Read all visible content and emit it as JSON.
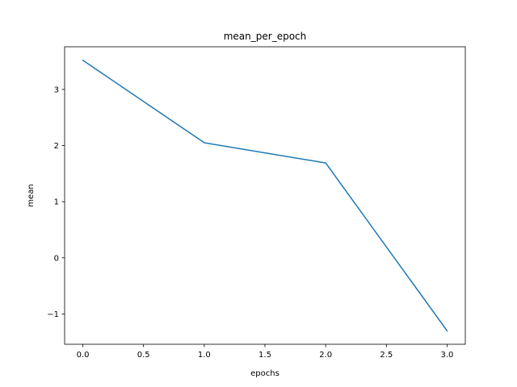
{
  "chart_data": {
    "type": "line",
    "title": "mean_per_epoch",
    "xlabel": "epochs",
    "ylabel": "mean",
    "x": [
      0,
      1,
      2,
      3
    ],
    "series": [
      {
        "values": [
          3.52,
          2.05,
          1.69,
          -1.3
        ]
      }
    ],
    "xlim": [
      -0.15,
      3.15
    ],
    "ylim": [
      -1.54,
      3.76
    ],
    "xticks": [
      0.0,
      0.5,
      1.0,
      1.5,
      2.0,
      2.5,
      3.0
    ],
    "xtick_labels": [
      "0.0",
      "0.5",
      "1.0",
      "1.5",
      "2.0",
      "2.5",
      "3.0"
    ],
    "yticks": [
      -1,
      0,
      1,
      2,
      3
    ],
    "ytick_labels": [
      "−1",
      "0",
      "1",
      "2",
      "3"
    ],
    "grid": false,
    "line_color": "#1f77b4"
  }
}
